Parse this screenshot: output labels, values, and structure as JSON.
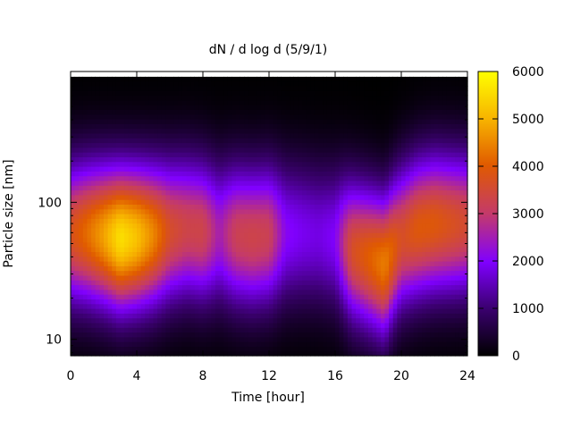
{
  "chart_data": {
    "type": "heatmap",
    "title": "dN / d log d (5/9/1)",
    "xlabel": "Time [hour]",
    "ylabel": "Particle size [nm]",
    "xlim": [
      0,
      24
    ],
    "x_ticks": [
      {
        "value": 0,
        "label": "0"
      },
      {
        "value": 4,
        "label": "4"
      },
      {
        "value": 8,
        "label": "8"
      },
      {
        "value": 12,
        "label": "12"
      },
      {
        "value": 16,
        "label": "16"
      },
      {
        "value": 20,
        "label": "20"
      },
      {
        "value": 24,
        "label": "24"
      }
    ],
    "y_scale": "log",
    "ylim": [
      7.6,
      900
    ],
    "y_ticks": [
      {
        "value": 10,
        "label": "10"
      },
      {
        "value": 100,
        "label": "100"
      }
    ],
    "colorbar": {
      "range": [
        0,
        6000
      ],
      "ticks": [
        {
          "value": 0,
          "label": "0"
        },
        {
          "value": 1000,
          "label": "1000"
        },
        {
          "value": 2000,
          "label": "2000"
        },
        {
          "value": 3000,
          "label": "3000"
        },
        {
          "value": 4000,
          "label": "4000"
        },
        {
          "value": 5000,
          "label": "5000"
        },
        {
          "value": 6000,
          "label": "6000"
        }
      ],
      "colormap": [
        "#000000",
        "#3c0072",
        "#8000ff",
        "#c43a6a",
        "#e05a00",
        "#f7b200",
        "#ffff00"
      ]
    },
    "time_hours": [
      0,
      1,
      2,
      3,
      4,
      5,
      6,
      7,
      8,
      9,
      10,
      11,
      12,
      13,
      14,
      15,
      16,
      17,
      18,
      19,
      20,
      21,
      22,
      23,
      24
    ],
    "peak_diameter_nm": [
      60,
      60,
      58,
      55,
      56,
      58,
      62,
      65,
      62,
      60,
      58,
      56,
      58,
      60,
      60,
      58,
      55,
      45,
      40,
      35,
      55,
      65,
      70,
      70,
      70
    ],
    "peak_concentration": [
      3700,
      4200,
      4800,
      5600,
      5200,
      4500,
      3600,
      3300,
      3300,
      2500,
      3200,
      3300,
      3200,
      2100,
      1900,
      1800,
      2000,
      3600,
      4000,
      4400,
      3600,
      3900,
      3900,
      3700,
      3500
    ]
  }
}
